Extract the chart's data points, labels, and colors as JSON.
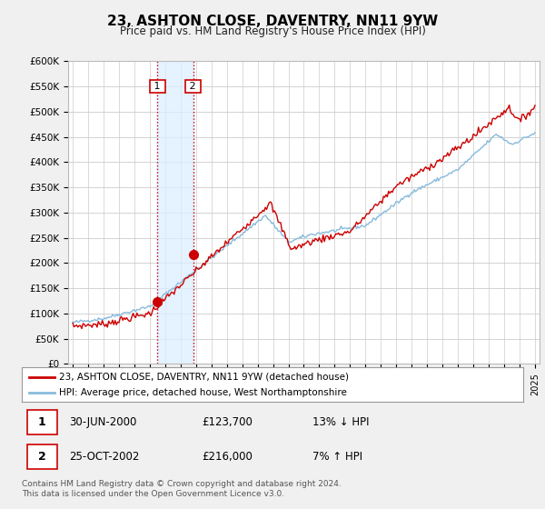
{
  "title": "23, ASHTON CLOSE, DAVENTRY, NN11 9YW",
  "subtitle": "Price paid vs. HM Land Registry's House Price Index (HPI)",
  "legend_line1": "23, ASHTON CLOSE, DAVENTRY, NN11 9YW (detached house)",
  "legend_line2": "HPI: Average price, detached house, West Northamptonshire",
  "transaction1_date": "30-JUN-2000",
  "transaction1_price": "£123,700",
  "transaction1_hpi": "13% ↓ HPI",
  "transaction1_year": 2000.5,
  "transaction1_value": 123700,
  "transaction2_date": "25-OCT-2002",
  "transaction2_price": "£216,000",
  "transaction2_hpi": "7% ↑ HPI",
  "transaction2_year": 2002.81,
  "transaction2_value": 216000,
  "footer1": "Contains HM Land Registry data © Crown copyright and database right 2024.",
  "footer2": "This data is licensed under the Open Government Licence v3.0.",
  "ylim": [
    0,
    600000
  ],
  "yticks": [
    0,
    50000,
    100000,
    150000,
    200000,
    250000,
    300000,
    350000,
    400000,
    450000,
    500000,
    550000,
    600000
  ],
  "ytick_labels": [
    "£0",
    "£50K",
    "£100K",
    "£150K",
    "£200K",
    "£250K",
    "£300K",
    "£350K",
    "£400K",
    "£450K",
    "£500K",
    "£550K",
    "£600K"
  ],
  "line_color_red": "#cc0000",
  "line_color_blue": "#88bbdd",
  "shade_color": "#ddeeff",
  "background_color": "#f0f0f0",
  "plot_bg_color": "#ffffff",
  "xlim_left": 1994.7,
  "xlim_right": 2025.3
}
